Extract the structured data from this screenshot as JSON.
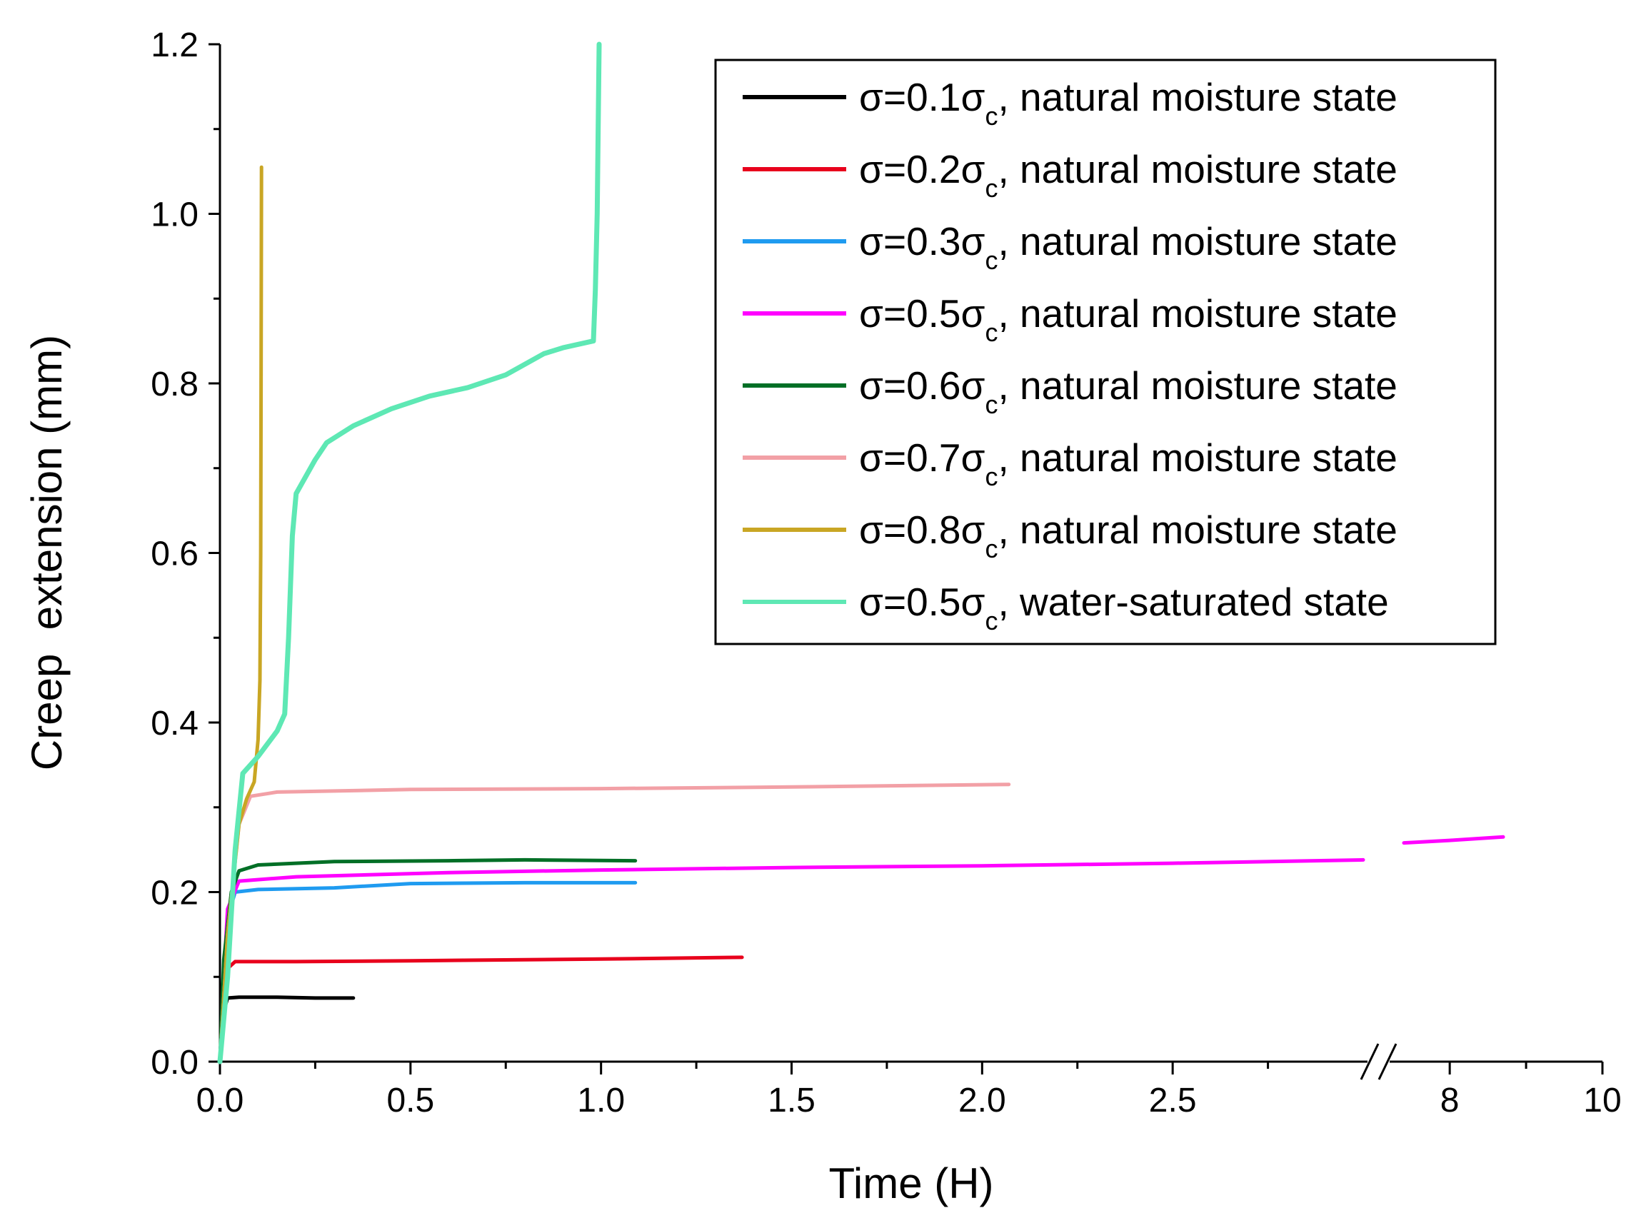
{
  "chart_data": {
    "type": "line",
    "title": "",
    "xlabel": "Time (H)",
    "ylabel": "Creep  extension (mm)",
    "ylim": [
      0,
      1.2
    ],
    "x_segments": [
      {
        "xlim": [
          0,
          3.0
        ],
        "ticks": [
          0,
          0.5,
          1.0,
          1.5,
          2.0,
          2.5
        ],
        "tick_labels": [
          "0.0",
          "0.5",
          "1.0",
          "1.5",
          "2.0",
          "2.5"
        ]
      },
      {
        "xlim": [
          7.4,
          10
        ],
        "ticks": [
          8,
          10
        ],
        "tick_labels": [
          "8",
          "10"
        ]
      }
    ],
    "y_ticks": [
      0,
      0.2,
      0.4,
      0.6,
      0.8,
      1.0,
      1.2
    ],
    "y_tick_labels": [
      "0.0",
      "0.2",
      "0.4",
      "0.6",
      "0.8",
      "1.0",
      "1.2"
    ],
    "axis_break": true,
    "legend": {
      "position": "top-right"
    },
    "series": [
      {
        "name": "σ=0.1σc, natural moisture state",
        "label_main": "σ=0.1σ",
        "label_sub": "c",
        "label_tail": ", natural moisture state",
        "color": "#000000",
        "points": [
          [
            0,
            0
          ],
          [
            0.005,
            0.04
          ],
          [
            0.01,
            0.06
          ],
          [
            0.02,
            0.075
          ],
          [
            0.05,
            0.076
          ],
          [
            0.15,
            0.076
          ],
          [
            0.25,
            0.075
          ],
          [
            0.35,
            0.075
          ]
        ]
      },
      {
        "name": "σ=0.2σc, natural moisture state",
        "label_main": "σ=0.2σ",
        "label_sub": "c",
        "label_tail": ", natural moisture state",
        "color": "#e8001c",
        "points": [
          [
            0,
            0
          ],
          [
            0.01,
            0.07
          ],
          [
            0.02,
            0.11
          ],
          [
            0.04,
            0.118
          ],
          [
            0.2,
            0.118
          ],
          [
            0.5,
            0.119
          ],
          [
            1.0,
            0.121
          ],
          [
            1.37,
            0.123
          ]
        ]
      },
      {
        "name": "σ=0.3σc, natural moisture state",
        "label_main": "σ=0.3σ",
        "label_sub": "c",
        "label_tail": ", natural moisture state",
        "color": "#1f9bf0",
        "points": [
          [
            0,
            0
          ],
          [
            0.01,
            0.1
          ],
          [
            0.02,
            0.17
          ],
          [
            0.04,
            0.2
          ],
          [
            0.1,
            0.203
          ],
          [
            0.3,
            0.205
          ],
          [
            0.5,
            0.21
          ],
          [
            0.8,
            0.211
          ],
          [
            1.09,
            0.211
          ]
        ]
      },
      {
        "name": "σ=0.5σc, natural moisture state",
        "label_main": "σ=0.5σ",
        "label_sub": "c",
        "label_tail": ", natural moisture state",
        "color": "#ff00ff",
        "segments": [
          [
            [
              0,
              0
            ],
            [
              0.01,
              0.1
            ],
            [
              0.02,
              0.18
            ],
            [
              0.05,
              0.213
            ],
            [
              0.2,
              0.218
            ],
            [
              0.6,
              0.223
            ],
            [
              1.0,
              0.226
            ],
            [
              1.5,
              0.229
            ],
            [
              2.0,
              0.231
            ],
            [
              2.5,
              0.234
            ],
            [
              3.0,
              0.238
            ]
          ],
          [
            [
              7.4,
              0.258
            ],
            [
              8.0,
              0.261
            ],
            [
              8.7,
              0.265
            ]
          ]
        ]
      },
      {
        "name": "σ=0.6σc, natural moisture state",
        "label_main": "σ=0.6σ",
        "label_sub": "c",
        "label_tail": ", natural moisture state",
        "color": "#006f26",
        "points": [
          [
            0,
            0
          ],
          [
            0.01,
            0.12
          ],
          [
            0.03,
            0.2
          ],
          [
            0.05,
            0.225
          ],
          [
            0.1,
            0.232
          ],
          [
            0.3,
            0.236
          ],
          [
            0.6,
            0.237
          ],
          [
            0.8,
            0.238
          ],
          [
            1.09,
            0.237
          ]
        ]
      },
      {
        "name": "σ=0.7σc, natural moisture state",
        "label_main": "σ=0.7σ",
        "label_sub": "c",
        "label_tail": ", natural moisture state",
        "color": "#f2a0a6",
        "points": [
          [
            0,
            0
          ],
          [
            0.02,
            0.15
          ],
          [
            0.05,
            0.28
          ],
          [
            0.08,
            0.313
          ],
          [
            0.15,
            0.318
          ],
          [
            0.5,
            0.321
          ],
          [
            1.0,
            0.322
          ],
          [
            1.5,
            0.324
          ],
          [
            2.07,
            0.327
          ]
        ]
      },
      {
        "name": "σ=0.8σc, natural moisture state",
        "label_main": "σ=0.8σ",
        "label_sub": "c",
        "label_tail": ", natural moisture state",
        "color": "#c9a624",
        "points": [
          [
            0,
            0
          ],
          [
            0.02,
            0.15
          ],
          [
            0.05,
            0.28
          ],
          [
            0.07,
            0.31
          ],
          [
            0.09,
            0.33
          ],
          [
            0.1,
            0.38
          ],
          [
            0.105,
            0.45
          ],
          [
            0.107,
            0.6
          ],
          [
            0.108,
            0.8
          ],
          [
            0.109,
            1.055
          ]
        ]
      },
      {
        "name": "σ=0.5σc, water-saturated state",
        "label_main": "σ=0.5σ",
        "label_sub": "c",
        "label_tail": ", water-saturated state",
        "color": "#5ee8b4",
        "points": [
          [
            0,
            0
          ],
          [
            0.02,
            0.1
          ],
          [
            0.04,
            0.25
          ],
          [
            0.06,
            0.34
          ],
          [
            0.1,
            0.36
          ],
          [
            0.15,
            0.39
          ],
          [
            0.17,
            0.41
          ],
          [
            0.18,
            0.5
          ],
          [
            0.19,
            0.62
          ],
          [
            0.2,
            0.67
          ],
          [
            0.25,
            0.71
          ],
          [
            0.28,
            0.73
          ],
          [
            0.35,
            0.75
          ],
          [
            0.45,
            0.77
          ],
          [
            0.55,
            0.785
          ],
          [
            0.65,
            0.795
          ],
          [
            0.75,
            0.81
          ],
          [
            0.85,
            0.835
          ],
          [
            0.9,
            0.842
          ],
          [
            0.98,
            0.85
          ],
          [
            0.985,
            0.91
          ],
          [
            0.99,
            1.0
          ],
          [
            0.995,
            1.2
          ]
        ]
      }
    ]
  }
}
